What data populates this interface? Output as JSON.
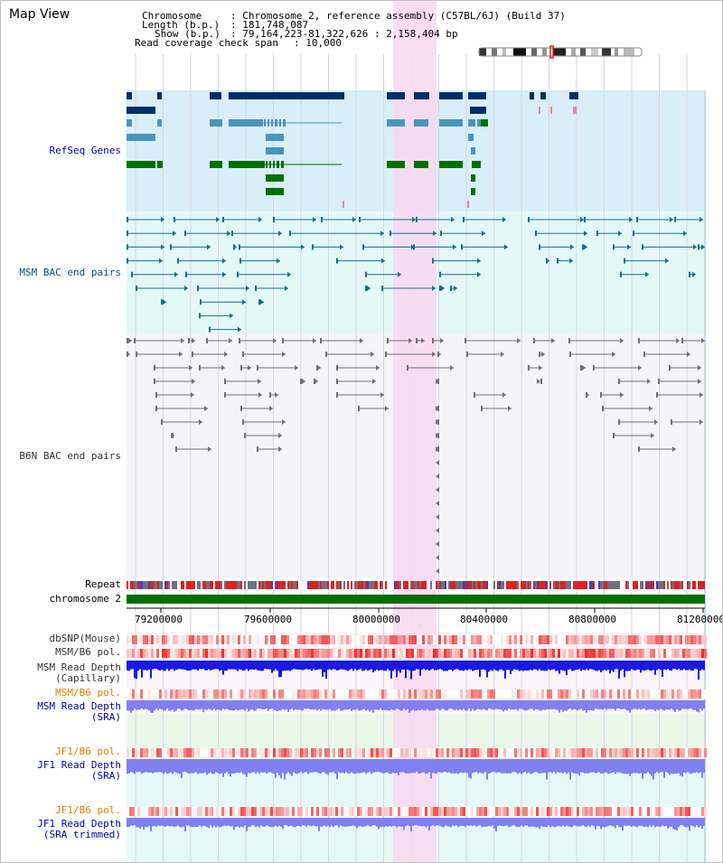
{
  "window": {
    "title": "Map View"
  },
  "header": {
    "chromosome_key": "Chromosome",
    "chromosome_val": ": Chromosome 2, reference assembly (C57BL/6J) (Build 37)",
    "length_key": "Length (b.p.)",
    "length_val": ": 181,748,087",
    "show_key": "Show (b.p.)",
    "show_val": ": 79,164,223-81,322,626 : 2,158,404 bp",
    "coverage_key": "Read coverage check span",
    "coverage_val": ": 10,000"
  },
  "tracks": {
    "refseq": "RefSeq Genes",
    "msm_bac": "MSM BAC end pairs",
    "b6n_bac": "B6N BAC end pairs",
    "repeat": "Repeat",
    "chromosome": "chromosome 2",
    "dbsnp": "dbSNP(Mouse)",
    "msm_b6_pol": "MSM/B6 pol.",
    "msm_read_depth_cap_1": "MSM Read Depth",
    "msm_read_depth_cap_2": "(Capillary)",
    "msm_b6_pol_2": "MSM/B6 pol.",
    "msm_read_depth_sra_1": "MSM Read Depth",
    "msm_read_depth_sra_2": "(SRA)",
    "jf1_b6_pol": "JF1/B6 pol.",
    "jf1_read_depth_sra_1": "JF1 Read Depth",
    "jf1_read_depth_sra_2": "(SRA)",
    "jf1_b6_pol_2": "JF1/B6 pol.",
    "jf1_read_depth_trim_1": "JF1 Read Depth",
    "jf1_read_depth_trim_2": "(SRA trimmed)"
  },
  "axis": {
    "ticks": [
      "79200000",
      "79600000",
      "80000000",
      "80400000",
      "80800000",
      "81200000"
    ]
  },
  "colors": {
    "refseq_bg": "#d8eef8",
    "msm_bg": "#e4f8f8",
    "b6n_bg": "#f4f4fa",
    "highlight": "#f8d8f0",
    "gene_dark": "#002e6b",
    "gene_mid": "#4a94c0",
    "gene_green": "#007000",
    "bac_teal": "#15708a",
    "bac_gray": "#707070",
    "chromosome_bar": "#007000",
    "depth_dark_blue": "#1a1ae0",
    "depth_light_blue": "#8080f0",
    "pol_red": "#f06060"
  }
}
